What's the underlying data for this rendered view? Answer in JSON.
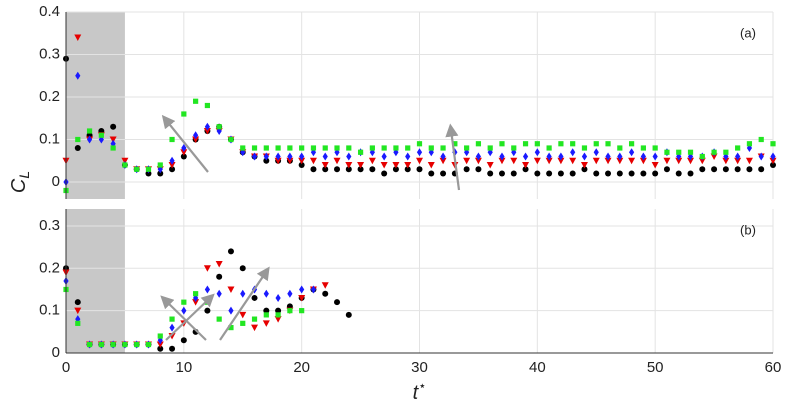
{
  "chart_data": [
    {
      "type": "scatter",
      "annotation": "(a)",
      "xlim": [
        0,
        60
      ],
      "xticks": [
        0,
        10,
        20,
        30,
        40,
        50,
        60
      ],
      "xticklabels": false,
      "ylim": [
        -0.04,
        0.4
      ],
      "yticks": [
        0,
        0.1,
        0.2,
        0.3,
        0.4
      ],
      "grid": true,
      "shade": [
        0,
        5
      ],
      "series": [
        {
          "color": "#000000",
          "marker": "circle",
          "x": [
            0,
            1,
            2,
            3,
            4,
            5,
            6,
            7,
            8,
            9,
            10,
            11,
            12,
            13,
            14,
            15,
            16,
            17,
            18,
            19,
            20,
            21,
            22,
            23,
            24,
            25,
            26,
            27,
            28,
            29,
            30,
            31,
            32,
            33,
            34,
            35,
            36,
            37,
            38,
            39,
            40,
            41,
            42,
            43,
            44,
            45,
            46,
            47,
            48,
            49,
            50,
            51,
            52,
            53,
            54,
            55,
            56,
            57,
            58,
            59,
            60
          ],
          "values": [
            0.29,
            0.08,
            0.11,
            0.12,
            0.13,
            0.04,
            0.03,
            0.02,
            0.02,
            0.03,
            0.06,
            0.1,
            0.12,
            0.13,
            0.1,
            0.07,
            0.06,
            0.05,
            0.05,
            0.05,
            0.04,
            0.03,
            0.03,
            0.03,
            0.03,
            0.03,
            0.03,
            0.02,
            0.03,
            0.03,
            0.03,
            0.02,
            0.02,
            0.02,
            0.03,
            0.03,
            0.02,
            0.02,
            0.02,
            0.03,
            0.02,
            0.02,
            0.02,
            0.02,
            0.03,
            0.02,
            0.02,
            0.02,
            0.02,
            0.02,
            0.02,
            0.03,
            0.02,
            0.02,
            0.03,
            0.03,
            0.03,
            0.03,
            0.03,
            0.03,
            0.04
          ]
        },
        {
          "color": "#e60000",
          "marker": "triangle-down",
          "x": [
            0,
            1,
            2,
            3,
            4,
            5,
            6,
            7,
            8,
            9,
            10,
            11,
            12,
            13,
            14,
            15,
            16,
            17,
            18,
            19,
            20,
            21,
            22,
            23,
            24,
            25,
            26,
            27,
            28,
            29,
            30,
            31,
            32,
            33,
            34,
            35,
            36,
            37,
            38,
            39,
            40,
            41,
            42,
            43,
            44,
            45,
            46,
            47,
            48,
            49,
            50,
            51,
            52,
            53,
            54,
            55,
            56,
            57,
            58,
            59,
            60
          ],
          "values": [
            0.05,
            0.34,
            0.1,
            0.11,
            0.1,
            0.05,
            0.03,
            0.03,
            0.03,
            0.04,
            0.07,
            0.1,
            0.12,
            0.12,
            0.1,
            0.07,
            0.06,
            0.06,
            0.05,
            0.05,
            0.05,
            0.05,
            0.04,
            0.05,
            0.04,
            0.04,
            0.05,
            0.04,
            0.04,
            0.04,
            0.05,
            0.04,
            0.05,
            0.04,
            0.05,
            0.05,
            0.04,
            0.05,
            0.05,
            0.04,
            0.05,
            0.05,
            0.05,
            0.05,
            0.04,
            0.05,
            0.05,
            0.05,
            0.05,
            0.05,
            0.04,
            0.05,
            0.05,
            0.05,
            0.05,
            0.06,
            0.05,
            0.05,
            0.05,
            0.06,
            0.05
          ]
        },
        {
          "color": "#1a1aff",
          "marker": "diamond",
          "x": [
            0,
            1,
            2,
            3,
            4,
            5,
            6,
            7,
            8,
            9,
            10,
            11,
            12,
            13,
            14,
            15,
            16,
            17,
            18,
            19,
            20,
            21,
            22,
            23,
            24,
            25,
            26,
            27,
            28,
            29,
            30,
            31,
            32,
            33,
            34,
            35,
            36,
            37,
            38,
            39,
            40,
            41,
            42,
            43,
            44,
            45,
            46,
            47,
            48,
            49,
            50,
            51,
            52,
            53,
            54,
            55,
            56,
            57,
            58,
            59,
            60
          ],
          "values": [
            0.0,
            0.25,
            0.1,
            0.1,
            0.09,
            0.04,
            0.03,
            0.03,
            0.03,
            0.05,
            0.08,
            0.11,
            0.13,
            0.12,
            0.1,
            0.07,
            0.06,
            0.06,
            0.06,
            0.06,
            0.06,
            0.07,
            0.06,
            0.07,
            0.06,
            0.07,
            0.07,
            0.06,
            0.07,
            0.06,
            0.07,
            0.07,
            0.06,
            0.07,
            0.07,
            0.06,
            0.07,
            0.06,
            0.07,
            0.06,
            0.07,
            0.06,
            0.06,
            0.07,
            0.06,
            0.07,
            0.06,
            0.06,
            0.07,
            0.06,
            0.06,
            0.07,
            0.06,
            0.06,
            0.06,
            0.07,
            0.06,
            0.06,
            0.08,
            0.06,
            0.06
          ]
        },
        {
          "color": "#22e622",
          "marker": "square",
          "x": [
            0,
            1,
            2,
            3,
            4,
            5,
            6,
            7,
            8,
            9,
            10,
            11,
            12,
            13,
            14,
            15,
            16,
            17,
            18,
            19,
            20,
            21,
            22,
            23,
            24,
            25,
            26,
            27,
            28,
            29,
            30,
            31,
            32,
            33,
            34,
            35,
            36,
            37,
            38,
            39,
            40,
            41,
            42,
            43,
            44,
            45,
            46,
            47,
            48,
            49,
            50,
            51,
            52,
            53,
            54,
            55,
            56,
            57,
            58,
            59,
            60
          ],
          "values": [
            -0.02,
            0.1,
            0.12,
            0.11,
            0.08,
            0.04,
            0.03,
            0.03,
            0.04,
            0.1,
            0.16,
            0.19,
            0.18,
            0.13,
            0.1,
            0.08,
            0.08,
            0.08,
            0.08,
            0.08,
            0.08,
            0.08,
            0.08,
            0.08,
            0.08,
            0.07,
            0.08,
            0.08,
            0.08,
            0.08,
            0.09,
            0.08,
            0.08,
            0.09,
            0.08,
            0.09,
            0.08,
            0.09,
            0.08,
            0.09,
            0.09,
            0.08,
            0.09,
            0.09,
            0.08,
            0.09,
            0.09,
            0.08,
            0.09,
            0.08,
            0.08,
            0.07,
            0.07,
            0.07,
            0.06,
            0.07,
            0.07,
            0.08,
            0.09,
            0.1,
            0.09
          ]
        }
      ]
    },
    {
      "type": "scatter",
      "annotation": "(b)",
      "xlim": [
        0,
        60
      ],
      "xticks": [
        0,
        10,
        20,
        30,
        40,
        50,
        60
      ],
      "xticklabels": true,
      "ylim": [
        0,
        0.34
      ],
      "yticks": [
        0,
        0.1,
        0.2,
        0.3
      ],
      "grid": true,
      "shade": [
        0,
        5
      ],
      "xlabel": {
        "main": "t",
        "sup": "⋆"
      },
      "ylabel": {
        "main": "C",
        "sub": "L"
      },
      "series": [
        {
          "color": "#000000",
          "marker": "circle",
          "x": [
            0,
            1,
            2,
            3,
            4,
            5,
            6,
            7,
            8,
            9,
            10,
            11,
            12,
            13,
            14,
            15,
            16,
            17,
            18,
            19,
            20,
            21,
            22,
            23,
            24
          ],
          "values": [
            0.2,
            0.12,
            0.02,
            0.02,
            0.02,
            0.02,
            0.02,
            0.02,
            0.01,
            0.01,
            0.03,
            0.05,
            0.1,
            0.18,
            0.24,
            0.2,
            0.13,
            0.1,
            0.1,
            0.11,
            0.13,
            0.15,
            0.14,
            0.12,
            0.09
          ]
        },
        {
          "color": "#e60000",
          "marker": "triangle-down",
          "x": [
            0,
            1,
            2,
            3,
            4,
            5,
            6,
            7,
            8,
            9,
            10,
            11,
            12,
            13,
            14,
            15,
            16,
            17,
            18,
            19,
            20,
            21,
            22
          ],
          "values": [
            0.19,
            0.1,
            0.02,
            0.02,
            0.02,
            0.02,
            0.02,
            0.02,
            0.02,
            0.04,
            0.07,
            0.12,
            0.2,
            0.21,
            0.15,
            0.09,
            0.06,
            0.07,
            0.08,
            0.1,
            0.13,
            0.15,
            0.16
          ]
        },
        {
          "color": "#1a1aff",
          "marker": "diamond",
          "x": [
            0,
            1,
            2,
            3,
            4,
            5,
            6,
            7,
            8,
            9,
            10,
            11,
            12,
            13,
            14,
            15,
            16,
            17,
            18,
            19,
            20,
            21
          ],
          "values": [
            0.17,
            0.08,
            0.02,
            0.02,
            0.02,
            0.02,
            0.02,
            0.02,
            0.03,
            0.06,
            0.1,
            0.13,
            0.15,
            0.14,
            0.1,
            0.14,
            0.15,
            0.14,
            0.13,
            0.14,
            0.15,
            0.15
          ]
        },
        {
          "color": "#22e622",
          "marker": "square",
          "x": [
            0,
            1,
            2,
            3,
            4,
            5,
            6,
            7,
            8,
            9,
            10,
            11,
            12,
            13,
            14,
            15,
            16,
            17,
            18,
            19,
            20
          ],
          "values": [
            0.15,
            0.07,
            0.02,
            0.02,
            0.02,
            0.02,
            0.02,
            0.02,
            0.04,
            0.08,
            0.12,
            0.14,
            0.12,
            0.08,
            0.06,
            0.07,
            0.08,
            0.09,
            0.09,
            0.1,
            0.1
          ]
        }
      ]
    }
  ]
}
